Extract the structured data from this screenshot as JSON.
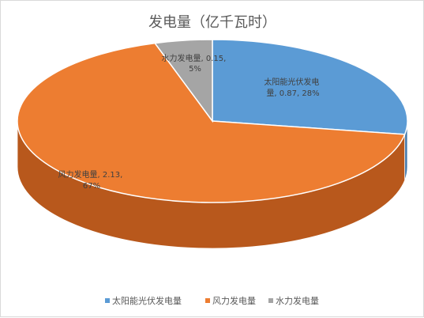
{
  "chart_data": {
    "type": "pie",
    "title": "发电量（亿千瓦时）",
    "slices": [
      {
        "name": "太阳能光伏发电量",
        "value": 0.87,
        "percent": "28%",
        "label_lines": [
          "太阳能光伏发电",
          "量, 0.87, 28%"
        ],
        "color": "#5b9bd5",
        "side_color": "#3f76aa"
      },
      {
        "name": "风力发电量",
        "value": 2.13,
        "percent": "67%",
        "label_lines": [
          "风力发电量, 2.13,",
          "67%"
        ],
        "color": "#ed7d31",
        "side_color": "#b8581c"
      },
      {
        "name": "水力发电量",
        "value": 0.15,
        "percent": "5%",
        "label_lines": [
          "水力发电量, 0.15,",
          "5%"
        ],
        "color": "#a5a5a5",
        "side_color": "#7c7c7c"
      }
    ],
    "legend": [
      "太阳能光伏发电量",
      "风力发电量",
      "水力发电量"
    ],
    "legend_position": "bottom",
    "style": "3d"
  }
}
